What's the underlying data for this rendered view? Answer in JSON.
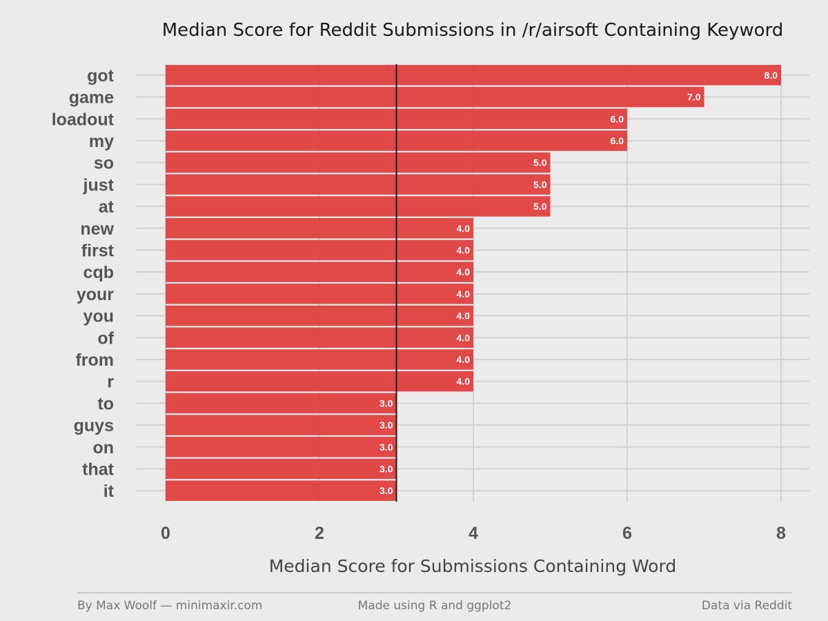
{
  "chart_data": {
    "type": "bar",
    "orientation": "horizontal",
    "title": "Median Score for Reddit Submissions in /r/airsoft Containing Keyword",
    "xlabel": "Median Score for Submissions Containing Word",
    "ylabel": "",
    "xlim": [
      0,
      8
    ],
    "xticks": [
      0,
      2,
      4,
      6,
      8
    ],
    "reference_line": 3,
    "grid": true,
    "categories": [
      "got",
      "game",
      "loadout",
      "my",
      "so",
      "just",
      "at",
      "new",
      "first",
      "cqb",
      "your",
      "you",
      "of",
      "from",
      "r",
      "to",
      "guys",
      "on",
      "that",
      "it"
    ],
    "values": [
      8,
      7,
      6,
      6,
      5,
      5,
      5,
      4,
      4,
      4,
      4,
      4,
      4,
      4,
      4,
      3,
      3,
      3,
      3,
      3
    ],
    "data_labels": [
      "8.0",
      "7.0",
      "6.0",
      "6.0",
      "5.0",
      "5.0",
      "5.0",
      "4.0",
      "4.0",
      "4.0",
      "4.0",
      "4.0",
      "4.0",
      "4.0",
      "4.0",
      "3.0",
      "3.0",
      "3.0",
      "3.0",
      "3.0"
    ],
    "bar_color": "#e0403f",
    "background_color": "#ebebeb",
    "gridline_color": "#d2d2d2"
  },
  "footer": {
    "left": "By Max Woolf — minimaxir.com",
    "center": "Made using R and ggplot2",
    "right": "Data via Reddit"
  }
}
